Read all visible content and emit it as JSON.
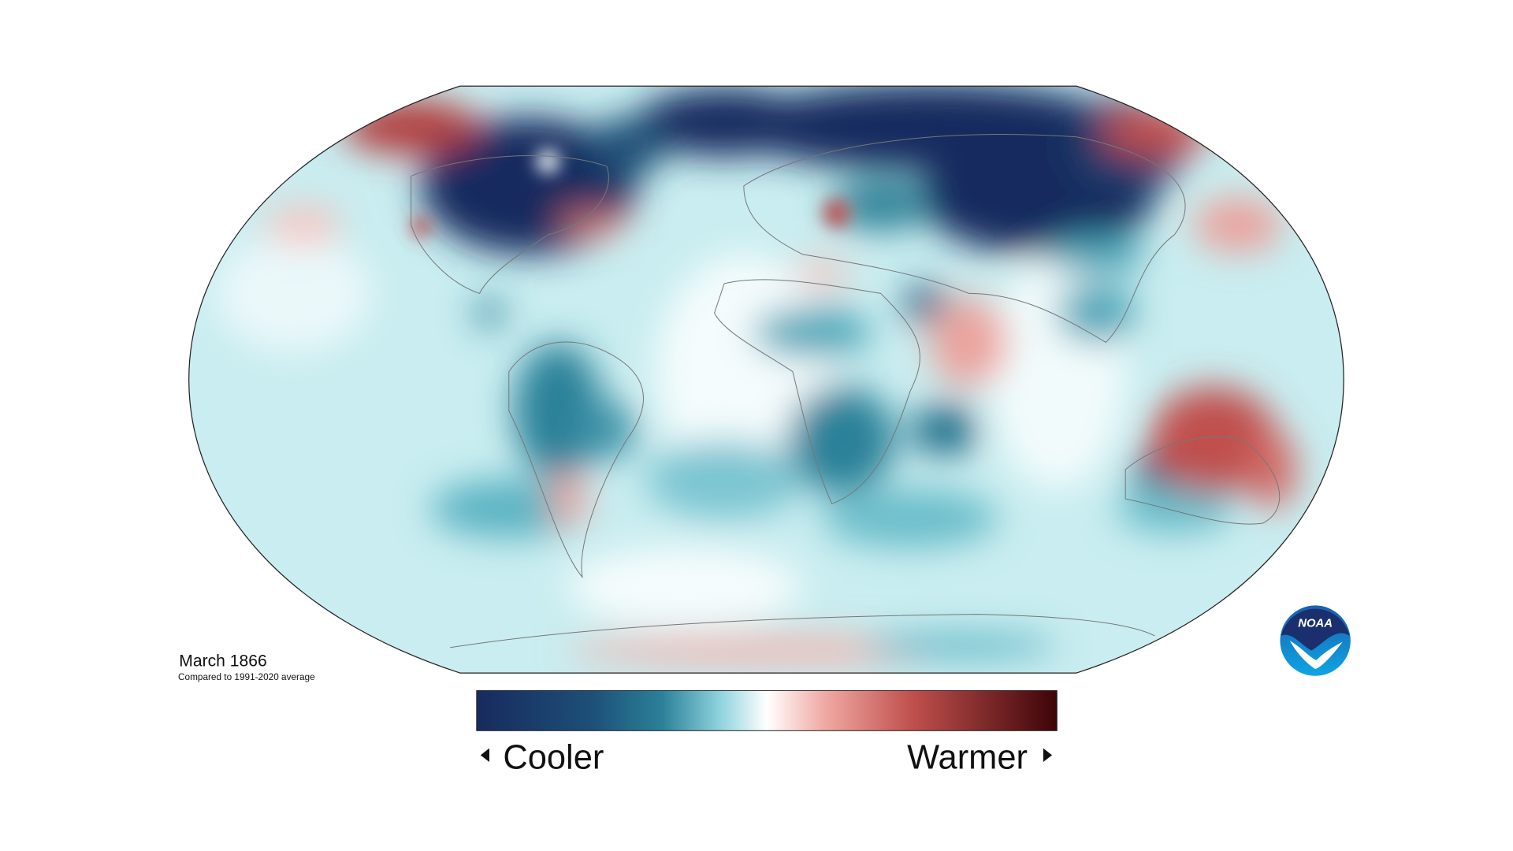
{
  "map": {
    "title": "March 1866",
    "subtitle": "Compared to 1991-2020 average"
  },
  "legend": {
    "low_label": "Cooler",
    "high_label": "Warmer"
  },
  "logo": {
    "text": "NOAA"
  }
}
